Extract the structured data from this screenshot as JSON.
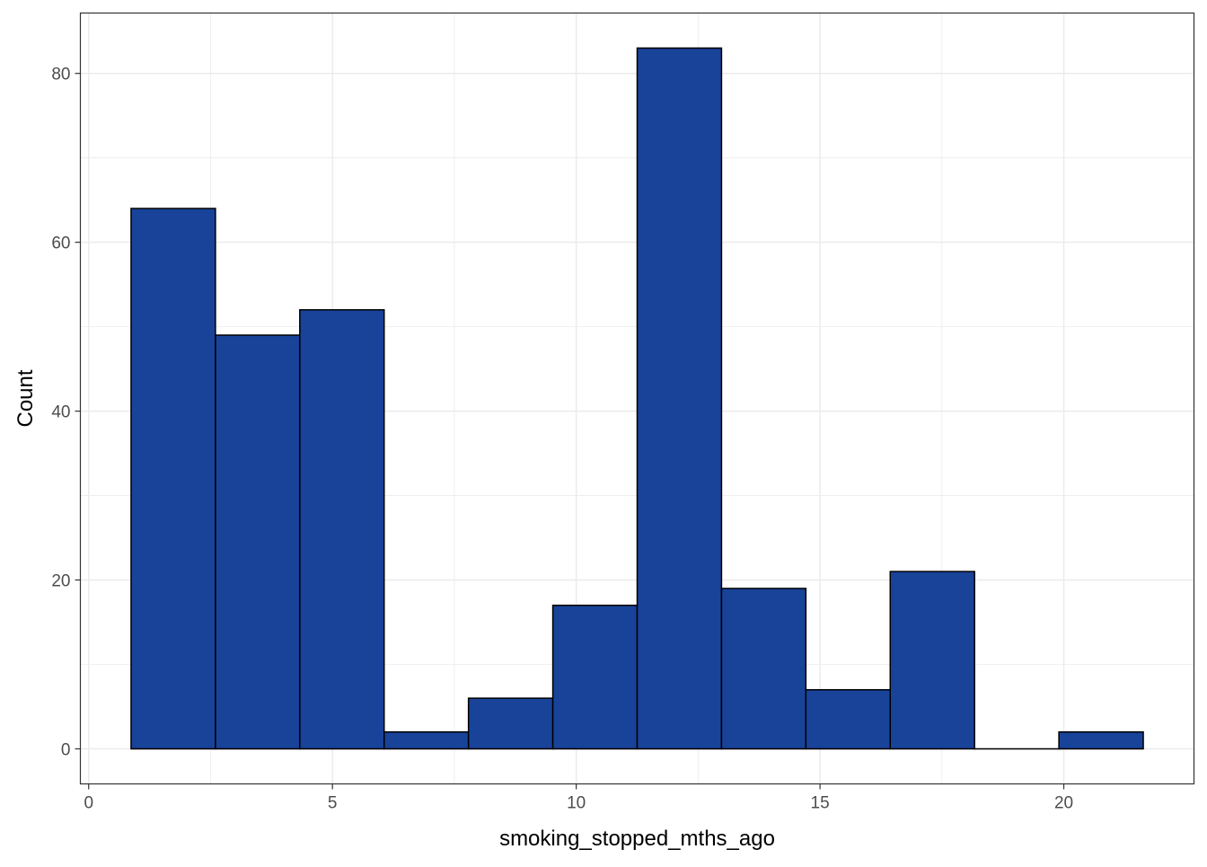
{
  "chart_data": {
    "type": "bar",
    "subtype": "histogram",
    "title": "",
    "xlabel": "smoking_stopped_mths_ago",
    "ylabel": "Count",
    "bins": [
      {
        "x0": 0.87,
        "x1": 2.6,
        "count": 64
      },
      {
        "x0": 2.6,
        "x1": 4.33,
        "count": 49
      },
      {
        "x0": 4.33,
        "x1": 6.06,
        "count": 52
      },
      {
        "x0": 6.06,
        "x1": 7.79,
        "count": 2
      },
      {
        "x0": 7.79,
        "x1": 9.52,
        "count": 6
      },
      {
        "x0": 9.52,
        "x1": 11.25,
        "count": 17
      },
      {
        "x0": 11.25,
        "x1": 12.98,
        "count": 83
      },
      {
        "x0": 12.98,
        "x1": 14.71,
        "count": 19
      },
      {
        "x0": 14.71,
        "x1": 16.44,
        "count": 7
      },
      {
        "x0": 16.44,
        "x1": 18.17,
        "count": 21
      },
      {
        "x0": 18.17,
        "x1": 19.9,
        "count": 0
      },
      {
        "x0": 19.9,
        "x1": 21.63,
        "count": 2
      }
    ],
    "xlim": [
      -0.17,
      22.67
    ],
    "ylim": [
      -4.15,
      87.15
    ],
    "x_ticks": [
      0,
      5,
      10,
      15,
      20
    ],
    "y_ticks": [
      0,
      20,
      40,
      60,
      80
    ],
    "x_minor": [
      2.5,
      7.5,
      12.5,
      17.5
    ],
    "y_minor": [
      10,
      30,
      50,
      70
    ],
    "grid": true,
    "legend": "none",
    "bar_fill": "#184399",
    "bar_stroke": "#000000",
    "grid_color": "#ebebeb",
    "panel_border": "#333333"
  }
}
